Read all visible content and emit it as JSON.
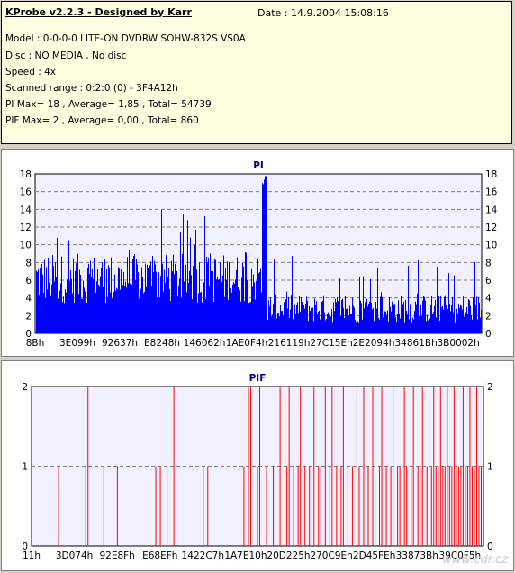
{
  "header": {
    "app_title": "KProbe v2.2.3 - Designed by Karr",
    "date": "Date : 14.9.2004 15:08:16",
    "lines": [
      "Model : 0-0-0-0 LITE-ON DVDRW SOHW-832S  VS0A",
      "Disc : NO MEDIA , No disc",
      "Speed : 4x",
      "Scanned range : 0:2:0 (0) - 3F4A12h",
      "PI Max= 18 , Average= 1,85 , Total= 54739",
      "PIF Max= 2 , Average= 0,00 , Total= 860"
    ]
  },
  "colors": {
    "pi_fill": "#0000ff",
    "pif_line": "#ff0000",
    "plot_bg": "#f0f0ff",
    "grid": "#808080",
    "axis_text": "#000000",
    "title_color": "#000080"
  },
  "watermark": "www.cdr.cz",
  "chart_data": [
    {
      "type": "bar",
      "title": "PI",
      "ylim": [
        0,
        18
      ],
      "yticks": [
        0,
        2,
        4,
        6,
        8,
        10,
        12,
        14,
        16,
        18
      ],
      "grid": true,
      "xticklabels": [
        "8Bh",
        "3E099h",
        "92637h",
        "E8248h",
        "146062h",
        "1AE0F4h",
        "216119h",
        "27C15Eh",
        "2E2094h",
        "34861Bh",
        "3B0002h"
      ],
      "segments": [
        {
          "x_end": 0.5,
          "base": 6.2,
          "spread": 2.8,
          "spike_every": 9,
          "spike_max": 14
        },
        {
          "x_end": 0.505,
          "base": 7.0,
          "spread": 2.5,
          "spike_every": 0,
          "spike_max": 0
        },
        {
          "x_end": 0.515,
          "base": 16.5,
          "spread": 1.5,
          "spike_every": 0,
          "spike_max": 18
        },
        {
          "x_end": 1.0,
          "base": 2.8,
          "spread": 1.6,
          "spike_every": 13,
          "spike_max": 9
        }
      ],
      "max": 18,
      "average": 1.85
    },
    {
      "type": "bar",
      "title": "PIF",
      "ylim": [
        0,
        2
      ],
      "yticks": [
        0,
        1,
        2
      ],
      "grid": true,
      "xticklabels": [
        "11h",
        "3D074h",
        "92E8Fh",
        "E68EFh",
        "1422C7h",
        "1A7E10h",
        "20D225h",
        "270C9Eh",
        "2D45FEh",
        "33873Bh",
        "39C0F5h"
      ],
      "spikes": [
        {
          "x": 0.06,
          "v": 1
        },
        {
          "x": 0.12,
          "v": 1
        },
        {
          "x": 0.125,
          "v": 2
        },
        {
          "x": 0.16,
          "v": 1
        },
        {
          "x": 0.19,
          "v": 1
        },
        {
          "x": 0.275,
          "v": 1
        },
        {
          "x": 0.285,
          "v": 1
        },
        {
          "x": 0.3,
          "v": 1
        },
        {
          "x": 0.315,
          "v": 2
        },
        {
          "x": 0.38,
          "v": 1
        },
        {
          "x": 0.39,
          "v": 1
        },
        {
          "x": 0.47,
          "v": 1
        },
        {
          "x": 0.48,
          "v": 2
        },
        {
          "x": 0.485,
          "v": 2
        },
        {
          "x": 0.5,
          "v": 1
        },
        {
          "x": 0.505,
          "v": 2
        },
        {
          "x": 0.52,
          "v": 1
        },
        {
          "x": 0.535,
          "v": 1
        },
        {
          "x": 0.55,
          "v": 2
        },
        {
          "x": 0.565,
          "v": 1
        },
        {
          "x": 0.57,
          "v": 2
        },
        {
          "x": 0.58,
          "v": 1
        },
        {
          "x": 0.59,
          "v": 1
        },
        {
          "x": 0.595,
          "v": 2
        },
        {
          "x": 0.605,
          "v": 1
        },
        {
          "x": 0.615,
          "v": 1
        },
        {
          "x": 0.625,
          "v": 2
        },
        {
          "x": 0.635,
          "v": 1
        },
        {
          "x": 0.64,
          "v": 1
        },
        {
          "x": 0.65,
          "v": 2
        },
        {
          "x": 0.66,
          "v": 1
        },
        {
          "x": 0.665,
          "v": 2
        },
        {
          "x": 0.675,
          "v": 1
        },
        {
          "x": 0.685,
          "v": 1
        },
        {
          "x": 0.69,
          "v": 2
        },
        {
          "x": 0.7,
          "v": 1
        },
        {
          "x": 0.71,
          "v": 1
        },
        {
          "x": 0.72,
          "v": 2
        },
        {
          "x": 0.725,
          "v": 1
        },
        {
          "x": 0.735,
          "v": 2
        },
        {
          "x": 0.745,
          "v": 1
        },
        {
          "x": 0.755,
          "v": 2
        },
        {
          "x": 0.76,
          "v": 1
        },
        {
          "x": 0.77,
          "v": 1
        },
        {
          "x": 0.775,
          "v": 2
        },
        {
          "x": 0.785,
          "v": 1
        },
        {
          "x": 0.795,
          "v": 1
        },
        {
          "x": 0.8,
          "v": 2
        },
        {
          "x": 0.81,
          "v": 1
        },
        {
          "x": 0.815,
          "v": 1
        },
        {
          "x": 0.825,
          "v": 2
        },
        {
          "x": 0.83,
          "v": 1
        },
        {
          "x": 0.84,
          "v": 1
        },
        {
          "x": 0.845,
          "v": 2
        },
        {
          "x": 0.855,
          "v": 1
        },
        {
          "x": 0.86,
          "v": 1
        },
        {
          "x": 0.865,
          "v": 2
        },
        {
          "x": 0.875,
          "v": 1
        },
        {
          "x": 0.885,
          "v": 1
        },
        {
          "x": 0.89,
          "v": 2
        },
        {
          "x": 0.895,
          "v": 1
        },
        {
          "x": 0.9,
          "v": 1
        },
        {
          "x": 0.905,
          "v": 2
        },
        {
          "x": 0.91,
          "v": 1
        },
        {
          "x": 0.915,
          "v": 1
        },
        {
          "x": 0.92,
          "v": 2
        },
        {
          "x": 0.925,
          "v": 1
        },
        {
          "x": 0.93,
          "v": 1
        },
        {
          "x": 0.935,
          "v": 2
        },
        {
          "x": 0.94,
          "v": 1
        },
        {
          "x": 0.945,
          "v": 1
        },
        {
          "x": 0.95,
          "v": 1
        },
        {
          "x": 0.955,
          "v": 2
        },
        {
          "x": 0.96,
          "v": 1
        },
        {
          "x": 0.965,
          "v": 1
        },
        {
          "x": 0.97,
          "v": 2
        },
        {
          "x": 0.975,
          "v": 1
        },
        {
          "x": 0.98,
          "v": 1
        },
        {
          "x": 0.985,
          "v": 2
        },
        {
          "x": 0.99,
          "v": 1
        },
        {
          "x": 0.995,
          "v": 1
        }
      ],
      "max": 2,
      "average": 0.0
    }
  ]
}
